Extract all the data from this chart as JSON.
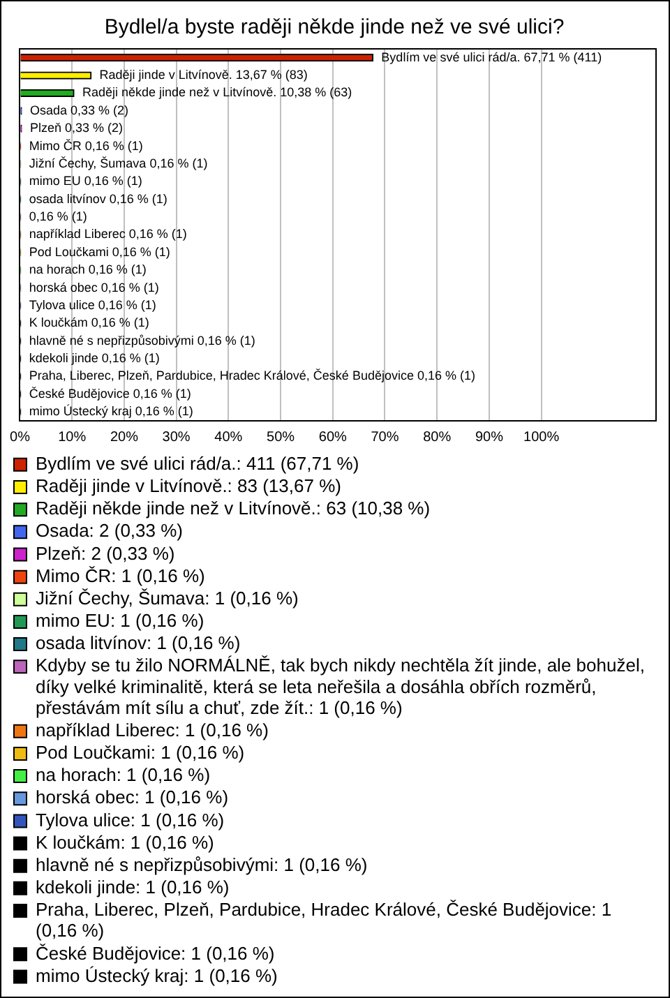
{
  "chart_data": {
    "type": "bar",
    "orientation": "horizontal",
    "title": "Bydlel/a byste raději někde jinde než ve své ulici?",
    "categories": [
      null,
      null,
      null,
      null,
      null,
      null,
      null,
      null,
      null,
      null,
      null,
      null,
      null,
      null,
      null,
      null,
      null,
      null,
      null,
      null,
      null
    ],
    "series": [
      {
        "name": "Bydlím ve své ulici rád/a.: 411 (67,71 %)",
        "color": "#cc2200",
        "values": [
          67.71,
          null,
          null,
          null,
          null,
          null,
          null,
          null,
          null,
          null,
          null,
          null,
          null,
          null,
          null,
          null,
          null,
          null,
          null,
          null,
          null
        ],
        "value_labels": [
          "Bydlím ve své ulici rád/a. 67,71 % (411)",
          null,
          null,
          null,
          null,
          null,
          null,
          null,
          null,
          null,
          null,
          null,
          null,
          null,
          null,
          null,
          null,
          null,
          null,
          null,
          null
        ]
      },
      {
        "name": "Raději jinde v Litvínově.: 83 (13,67 %)",
        "color": "#ffee00",
        "values": [
          null,
          13.67,
          null,
          null,
          null,
          null,
          null,
          null,
          null,
          null,
          null,
          null,
          null,
          null,
          null,
          null,
          null,
          null,
          null,
          null,
          null
        ],
        "value_labels": [
          null,
          "Raději jinde v Litvínově. 13,67 % (83)",
          null,
          null,
          null,
          null,
          null,
          null,
          null,
          null,
          null,
          null,
          null,
          null,
          null,
          null,
          null,
          null,
          null,
          null,
          null
        ]
      },
      {
        "name": "Raději někde jinde než v Litvínově.: 63 (10,38 %)",
        "color": "#22aa22",
        "values": [
          null,
          null,
          10.38,
          null,
          null,
          null,
          null,
          null,
          null,
          null,
          null,
          null,
          null,
          null,
          null,
          null,
          null,
          null,
          null,
          null,
          null
        ],
        "value_labels": [
          null,
          null,
          "Raději někde jinde než v Litvínově. 10,38 % (63)",
          null,
          null,
          null,
          null,
          null,
          null,
          null,
          null,
          null,
          null,
          null,
          null,
          null,
          null,
          null,
          null,
          null,
          null
        ]
      },
      {
        "name": "Osada: 2 (0,33 %)",
        "color": "#4466ee",
        "values": [
          null,
          null,
          null,
          0.33,
          null,
          null,
          null,
          null,
          null,
          null,
          null,
          null,
          null,
          null,
          null,
          null,
          null,
          null,
          null,
          null,
          null
        ],
        "value_labels": [
          null,
          null,
          null,
          "Osada 0,33 % (2)",
          null,
          null,
          null,
          null,
          null,
          null,
          null,
          null,
          null,
          null,
          null,
          null,
          null,
          null,
          null,
          null,
          null
        ]
      },
      {
        "name": "Plzeň: 2 (0,33 %)",
        "color": "#cc22cc",
        "values": [
          null,
          null,
          null,
          null,
          0.33,
          null,
          null,
          null,
          null,
          null,
          null,
          null,
          null,
          null,
          null,
          null,
          null,
          null,
          null,
          null,
          null
        ],
        "value_labels": [
          null,
          null,
          null,
          null,
          "Plzeň 0,33 % (2)",
          null,
          null,
          null,
          null,
          null,
          null,
          null,
          null,
          null,
          null,
          null,
          null,
          null,
          null,
          null,
          null
        ]
      },
      {
        "name": "Mimo ČR: 1 (0,16 %)",
        "color": "#ee4411",
        "values": [
          null,
          null,
          null,
          null,
          null,
          0.16,
          null,
          null,
          null,
          null,
          null,
          null,
          null,
          null,
          null,
          null,
          null,
          null,
          null,
          null,
          null
        ],
        "value_labels": [
          null,
          null,
          null,
          null,
          null,
          "Mimo ČR 0,16 % (1)",
          null,
          null,
          null,
          null,
          null,
          null,
          null,
          null,
          null,
          null,
          null,
          null,
          null,
          null,
          null
        ]
      },
      {
        "name": "Jižní Čechy, Šumava: 1 (0,16 %)",
        "color": "#ccff99",
        "values": [
          null,
          null,
          null,
          null,
          null,
          null,
          0.16,
          null,
          null,
          null,
          null,
          null,
          null,
          null,
          null,
          null,
          null,
          null,
          null,
          null,
          null
        ],
        "value_labels": [
          null,
          null,
          null,
          null,
          null,
          null,
          "Jižní Čechy, Šumava 0,16 % (1)",
          null,
          null,
          null,
          null,
          null,
          null,
          null,
          null,
          null,
          null,
          null,
          null,
          null,
          null
        ]
      },
      {
        "name": "mimo EU: 1 (0,16 %)",
        "color": "#229955",
        "values": [
          null,
          null,
          null,
          null,
          null,
          null,
          null,
          0.16,
          null,
          null,
          null,
          null,
          null,
          null,
          null,
          null,
          null,
          null,
          null,
          null,
          null
        ],
        "value_labels": [
          null,
          null,
          null,
          null,
          null,
          null,
          null,
          "mimo EU 0,16 % (1)",
          null,
          null,
          null,
          null,
          null,
          null,
          null,
          null,
          null,
          null,
          null,
          null,
          null
        ]
      },
      {
        "name": "osada litvínov: 1 (0,16 %)",
        "color": "#227788",
        "values": [
          null,
          null,
          null,
          null,
          null,
          null,
          null,
          null,
          0.16,
          null,
          null,
          null,
          null,
          null,
          null,
          null,
          null,
          null,
          null,
          null,
          null
        ],
        "value_labels": [
          null,
          null,
          null,
          null,
          null,
          null,
          null,
          null,
          "osada litvínov 0,16 % (1)",
          null,
          null,
          null,
          null,
          null,
          null,
          null,
          null,
          null,
          null,
          null,
          null
        ]
      },
      {
        "name": "Kdyby se tu žilo NORMÁLNĚ, tak bych nikdy nechtěla žít jinde, ale bohužel, díky velké kriminalitě, která se leta neřešila a dosáhla obřích rozměrů, přestávám mít sílu a chuť, zde žít.: 1 (0,16 %)",
        "color": "#bb66bb",
        "values": [
          null,
          null,
          null,
          null,
          null,
          null,
          null,
          null,
          null,
          0.16,
          null,
          null,
          null,
          null,
          null,
          null,
          null,
          null,
          null,
          null,
          null
        ],
        "value_labels": [
          null,
          null,
          null,
          null,
          null,
          null,
          null,
          null,
          null,
          "0,16 % (1)",
          null,
          null,
          null,
          null,
          null,
          null,
          null,
          null,
          null,
          null,
          null
        ]
      },
      {
        "name": "například Liberec: 1 (0,16 %)",
        "color": "#ee7711",
        "values": [
          null,
          null,
          null,
          null,
          null,
          null,
          null,
          null,
          null,
          null,
          0.16,
          null,
          null,
          null,
          null,
          null,
          null,
          null,
          null,
          null,
          null
        ],
        "value_labels": [
          null,
          null,
          null,
          null,
          null,
          null,
          null,
          null,
          null,
          null,
          "například Liberec 0,16 % (1)",
          null,
          null,
          null,
          null,
          null,
          null,
          null,
          null,
          null,
          null
        ]
      },
      {
        "name": "Pod Loučkami: 1 (0,16 %)",
        "color": "#eebb11",
        "values": [
          null,
          null,
          null,
          null,
          null,
          null,
          null,
          null,
          null,
          null,
          null,
          0.16,
          null,
          null,
          null,
          null,
          null,
          null,
          null,
          null,
          null
        ],
        "value_labels": [
          null,
          null,
          null,
          null,
          null,
          null,
          null,
          null,
          null,
          null,
          null,
          "Pod Loučkami 0,16 % (1)",
          null,
          null,
          null,
          null,
          null,
          null,
          null,
          null,
          null
        ]
      },
      {
        "name": "na horach: 1 (0,16 %)",
        "color": "#44ee44",
        "values": [
          null,
          null,
          null,
          null,
          null,
          null,
          null,
          null,
          null,
          null,
          null,
          null,
          0.16,
          null,
          null,
          null,
          null,
          null,
          null,
          null,
          null
        ],
        "value_labels": [
          null,
          null,
          null,
          null,
          null,
          null,
          null,
          null,
          null,
          null,
          null,
          null,
          "na horach 0,16 % (1)",
          null,
          null,
          null,
          null,
          null,
          null,
          null,
          null
        ]
      },
      {
        "name": "horská obec: 1 (0,16 %)",
        "color": "#6699dd",
        "values": [
          null,
          null,
          null,
          null,
          null,
          null,
          null,
          null,
          null,
          null,
          null,
          null,
          null,
          0.16,
          null,
          null,
          null,
          null,
          null,
          null,
          null
        ],
        "value_labels": [
          null,
          null,
          null,
          null,
          null,
          null,
          null,
          null,
          null,
          null,
          null,
          null,
          null,
          "horská obec 0,16 % (1)",
          null,
          null,
          null,
          null,
          null,
          null,
          null
        ]
      },
      {
        "name": "Tylova ulice: 1 (0,16 %)",
        "color": "#3355bb",
        "values": [
          null,
          null,
          null,
          null,
          null,
          null,
          null,
          null,
          null,
          null,
          null,
          null,
          null,
          null,
          0.16,
          null,
          null,
          null,
          null,
          null,
          null
        ],
        "value_labels": [
          null,
          null,
          null,
          null,
          null,
          null,
          null,
          null,
          null,
          null,
          null,
          null,
          null,
          null,
          "Tylova ulice 0,16 % (1)",
          null,
          null,
          null,
          null,
          null,
          null
        ]
      },
      {
        "name": "K loučkám: 1 (0,16 %)",
        "color": "#000000",
        "values": [
          null,
          null,
          null,
          null,
          null,
          null,
          null,
          null,
          null,
          null,
          null,
          null,
          null,
          null,
          null,
          0.16,
          null,
          null,
          null,
          null,
          null
        ],
        "value_labels": [
          null,
          null,
          null,
          null,
          null,
          null,
          null,
          null,
          null,
          null,
          null,
          null,
          null,
          null,
          null,
          "K loučkám 0,16 % (1)",
          null,
          null,
          null,
          null,
          null
        ]
      },
      {
        "name": "hlavně né s nepřizpůsobivými: 1 (0,16 %)",
        "color": "#000000",
        "values": [
          null,
          null,
          null,
          null,
          null,
          null,
          null,
          null,
          null,
          null,
          null,
          null,
          null,
          null,
          null,
          null,
          0.16,
          null,
          null,
          null,
          null
        ],
        "value_labels": [
          null,
          null,
          null,
          null,
          null,
          null,
          null,
          null,
          null,
          null,
          null,
          null,
          null,
          null,
          null,
          null,
          "hlavně né s nepřizpůsobivými 0,16 % (1)",
          null,
          null,
          null,
          null
        ]
      },
      {
        "name": "kdekoli jinde: 1 (0,16 %)",
        "color": "#000000",
        "values": [
          null,
          null,
          null,
          null,
          null,
          null,
          null,
          null,
          null,
          null,
          null,
          null,
          null,
          null,
          null,
          null,
          null,
          0.16,
          null,
          null,
          null
        ],
        "value_labels": [
          null,
          null,
          null,
          null,
          null,
          null,
          null,
          null,
          null,
          null,
          null,
          null,
          null,
          null,
          null,
          null,
          null,
          "kdekoli jinde 0,16 % (1)",
          null,
          null,
          null
        ]
      },
      {
        "name": "Praha, Liberec, Plzeň, Pardubice, Hradec Králové, České Budějovice: 1 (0,16 %)",
        "color": "#000000",
        "values": [
          null,
          null,
          null,
          null,
          null,
          null,
          null,
          null,
          null,
          null,
          null,
          null,
          null,
          null,
          null,
          null,
          null,
          null,
          0.16,
          null,
          null
        ],
        "value_labels": [
          null,
          null,
          null,
          null,
          null,
          null,
          null,
          null,
          null,
          null,
          null,
          null,
          null,
          null,
          null,
          null,
          null,
          null,
          "Praha, Liberec, Plzeň, Pardubice, Hradec Králové, České Budějovice 0,16 % (1)",
          null,
          null
        ]
      },
      {
        "name": "České Budějovice: 1 (0,16 %)",
        "color": "#000000",
        "values": [
          null,
          null,
          null,
          null,
          null,
          null,
          null,
          null,
          null,
          null,
          null,
          null,
          null,
          null,
          null,
          null,
          null,
          null,
          null,
          0.16,
          null
        ],
        "value_labels": [
          null,
          null,
          null,
          null,
          null,
          null,
          null,
          null,
          null,
          null,
          null,
          null,
          null,
          null,
          null,
          null,
          null,
          null,
          null,
          "České Budějovice 0,16 % (1)",
          null
        ]
      },
      {
        "name": "mimo Ústecký kraj: 1 (0,16 %)",
        "color": "#000000",
        "values": [
          null,
          null,
          null,
          null,
          null,
          null,
          null,
          null,
          null,
          null,
          null,
          null,
          null,
          null,
          null,
          null,
          null,
          null,
          null,
          null,
          0.16
        ],
        "value_labels": [
          null,
          null,
          null,
          null,
          null,
          null,
          null,
          null,
          null,
          null,
          null,
          null,
          null,
          null,
          null,
          null,
          null,
          null,
          null,
          null,
          "mimo Ústecký kraj 0,16 % (1)"
        ]
      }
    ],
    "xlim": [
      0,
      122
    ],
    "xticks": [
      {
        "value": 0,
        "label": "0%"
      },
      {
        "value": 10,
        "label": "10%"
      },
      {
        "value": 20,
        "label": "20%"
      },
      {
        "value": 30,
        "label": "30%"
      },
      {
        "value": 40,
        "label": "40%"
      },
      {
        "value": 50,
        "label": "50%"
      },
      {
        "value": 60,
        "label": "60%"
      },
      {
        "value": 70,
        "label": "70%"
      },
      {
        "value": 80,
        "label": "80%"
      },
      {
        "value": 90,
        "label": "90%"
      },
      {
        "value": 100,
        "label": "100%"
      }
    ],
    "grid": "x",
    "tick_labels": "x",
    "legend": "bottom"
  }
}
